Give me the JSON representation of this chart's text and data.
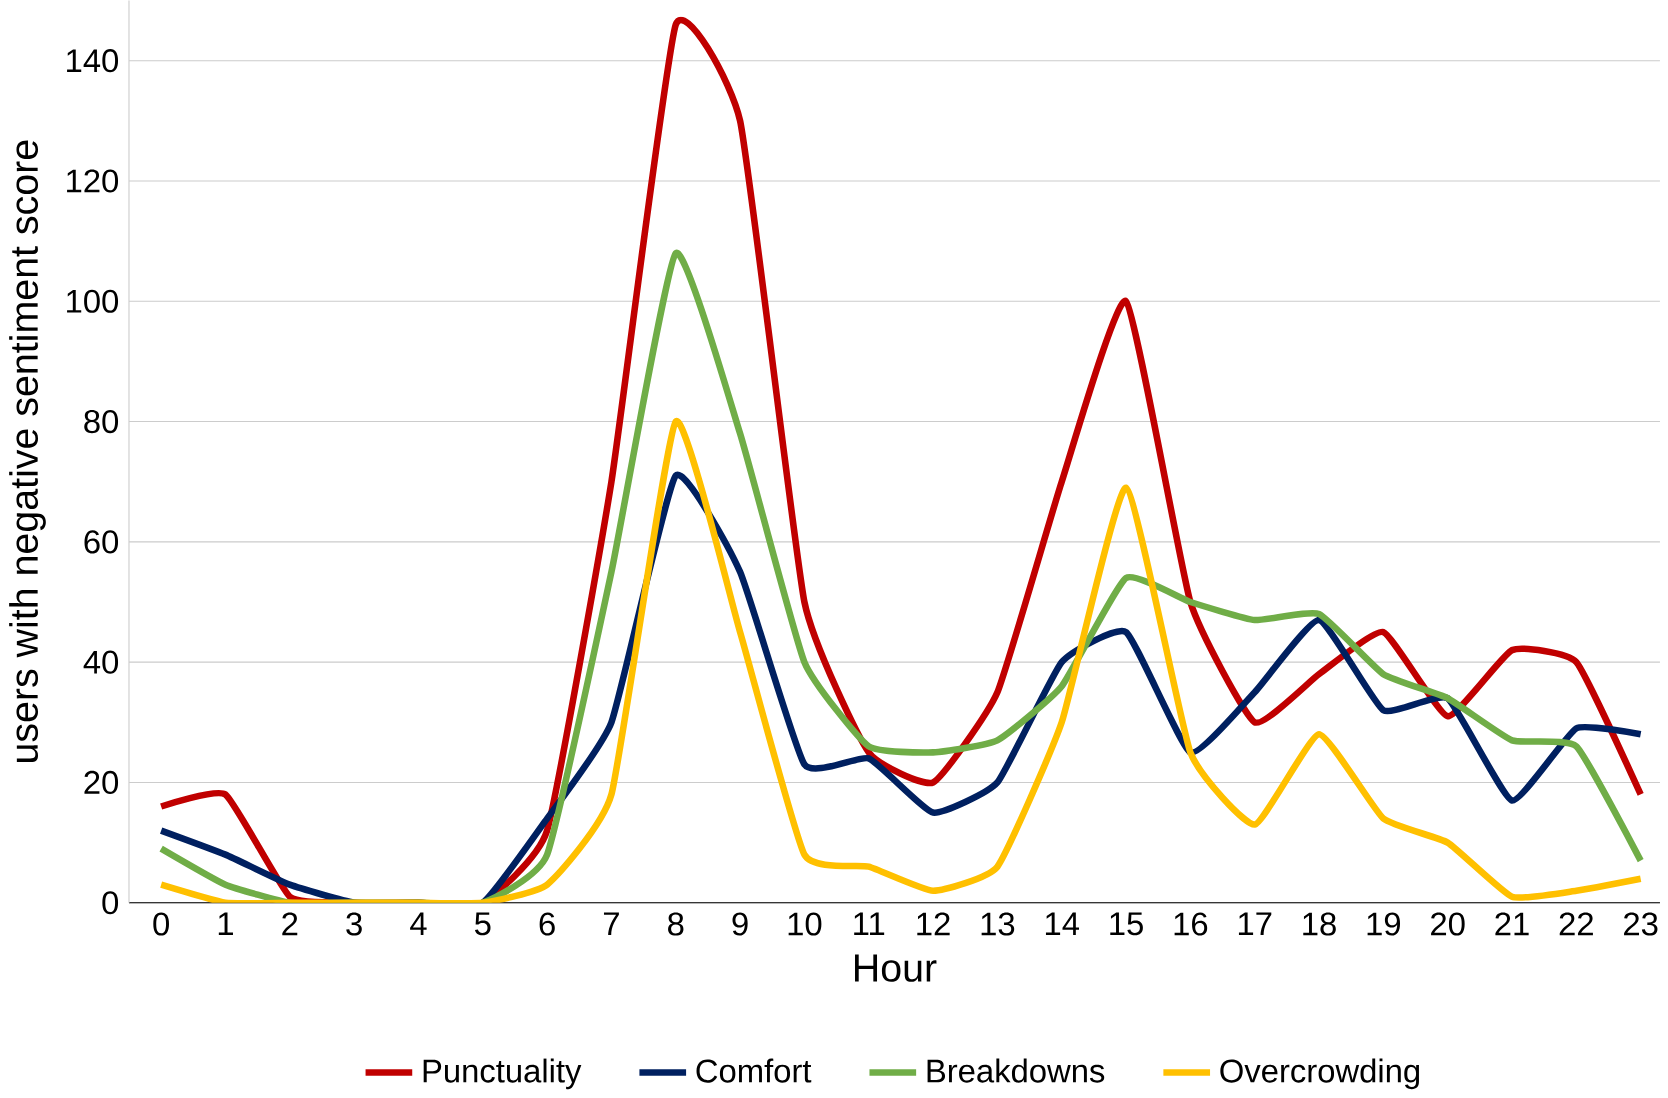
{
  "chart_data": {
    "type": "line",
    "xlabel": "Hour",
    "ylabel": "users with negative sentiment score",
    "categories": [
      "0",
      "1",
      "2",
      "3",
      "4",
      "5",
      "6",
      "7",
      "8",
      "9",
      "10",
      "11",
      "12",
      "13",
      "14",
      "15",
      "16",
      "17",
      "18",
      "19",
      "20",
      "21",
      "22",
      "23"
    ],
    "ylim": [
      0,
      150
    ],
    "yticks": [
      0,
      20,
      40,
      60,
      80,
      100,
      120,
      140
    ],
    "grid": "y",
    "legend": "bottom",
    "marker": "none",
    "line_style": "solid",
    "series": [
      {
        "name": "Punctuality",
        "color": "#c00000",
        "values": [
          16,
          18,
          1,
          0,
          0,
          0,
          12,
          70,
          146,
          130,
          50,
          25,
          20,
          35,
          70,
          100,
          50,
          30,
          38,
          45,
          31,
          42,
          40,
          18
        ]
      },
      {
        "name": "Comfort",
        "color": "#002060",
        "values": [
          12,
          8,
          3,
          0,
          0,
          0,
          14,
          30,
          71,
          55,
          23,
          24,
          15,
          20,
          40,
          45,
          25,
          35,
          47,
          32,
          34,
          17,
          29,
          28
        ]
      },
      {
        "name": "Breakdowns",
        "color": "#70ad47",
        "values": [
          9,
          3,
          0,
          0,
          0,
          0,
          8,
          55,
          108,
          78,
          40,
          26,
          25,
          27,
          36,
          54,
          50,
          47,
          48,
          38,
          34,
          27,
          26,
          7
        ]
      },
      {
        "name": "Overcrowding",
        "color": "#ffc000",
        "values": [
          3,
          0,
          0,
          0,
          0,
          0,
          3,
          18,
          80,
          45,
          8,
          6,
          2,
          6,
          30,
          69,
          25,
          13,
          28,
          14,
          10,
          1,
          2,
          4
        ]
      }
    ]
  }
}
